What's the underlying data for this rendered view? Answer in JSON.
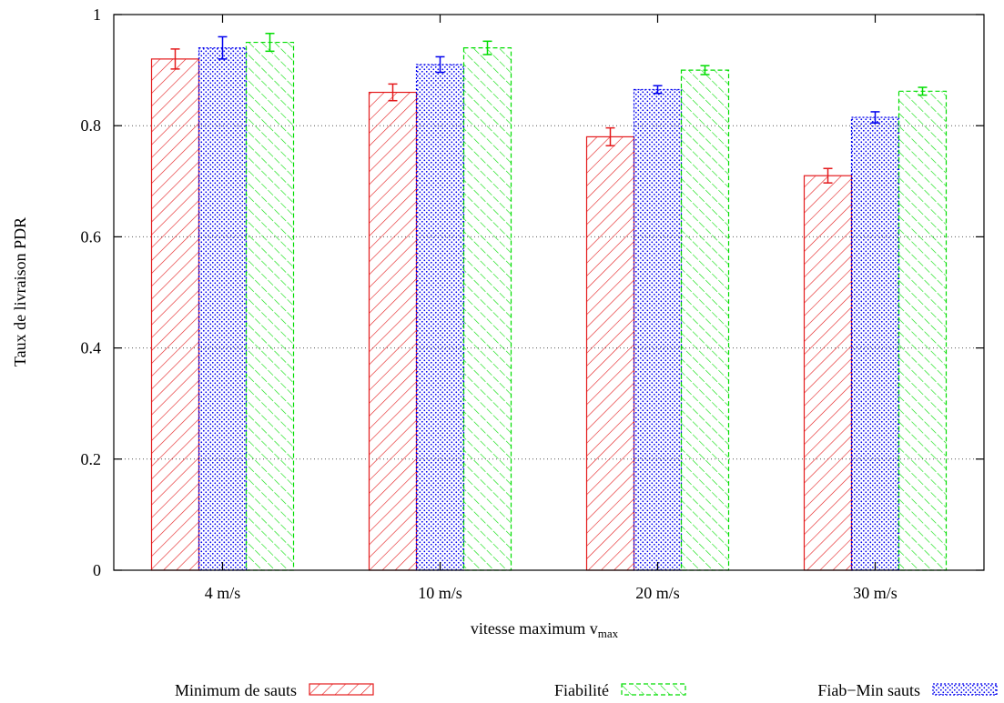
{
  "chart_data": {
    "type": "bar",
    "xlabel": "vitesse maximum v",
    "xlabel_subscript": "max",
    "ylabel": "Taux de livraison PDR",
    "categories": [
      "4 m/s",
      "10 m/s",
      "20 m/s",
      "30 m/s"
    ],
    "ylim": [
      0,
      1
    ],
    "yticks": [
      "0",
      "0.2",
      "0.4",
      "0.6",
      "0.8",
      "1"
    ],
    "grid": "horizontal dotted",
    "legend_position": "bottom",
    "series": [
      {
        "name": "Minimum de sauts",
        "color": "#e41a1c",
        "pattern": "diagonal-lines-down",
        "values": [
          0.92,
          0.86,
          0.78,
          0.71
        ],
        "errors": [
          0.018,
          0.015,
          0.016,
          0.013
        ]
      },
      {
        "name": "Fiab−Min sauts",
        "color": "#0000ee",
        "pattern": "dense-dots",
        "values": [
          0.94,
          0.91,
          0.865,
          0.815
        ],
        "errors": [
          0.02,
          0.014,
          0.007,
          0.01
        ]
      },
      {
        "name": "Fiabilité",
        "color": "#00dd00",
        "pattern": "diagonal-lines-up-dashed",
        "values": [
          0.95,
          0.94,
          0.9,
          0.862
        ],
        "errors": [
          0.016,
          0.012,
          0.008,
          0.007
        ]
      }
    ],
    "legend_order": [
      0,
      2,
      1
    ]
  }
}
